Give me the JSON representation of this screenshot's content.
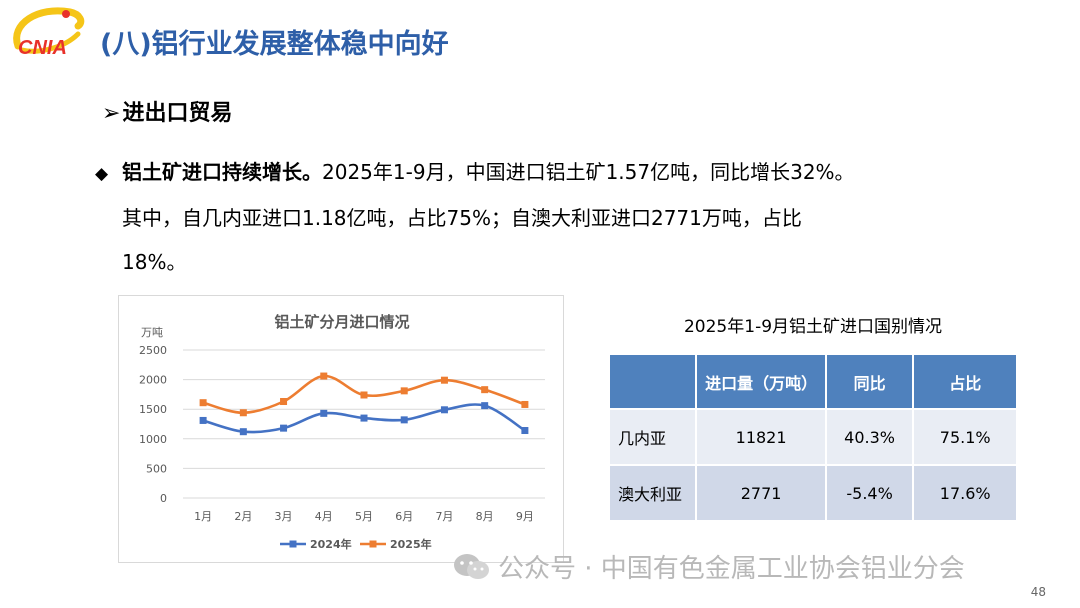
{
  "header": {
    "logo_text": "CNIA",
    "title": "(八)铝行业发展整体稳中向好"
  },
  "section": {
    "arrow": "➢",
    "heading": "进出口贸易"
  },
  "bullet": {
    "mark": "◆",
    "lead": "铝土矿进口持续增长。",
    "line1": "2025年1-9月，中国进口铝土矿1.57亿吨，同比增长32%。",
    "line2": "其中，自几内亚进口1.18亿吨，占比75%；自澳大利亚进口2771万吨，占比",
    "line3": "18%。"
  },
  "chart_data": {
    "type": "line",
    "title": "铝土矿分月进口情况",
    "ylabel": "万吨",
    "xlabel": "",
    "categories": [
      "1月",
      "2月",
      "3月",
      "4月",
      "5月",
      "6月",
      "7月",
      "8月",
      "9月"
    ],
    "ylim": [
      0,
      2500
    ],
    "yticks": [
      0,
      500,
      1000,
      1500,
      2000,
      2500
    ],
    "grid": true,
    "legend_position": "bottom",
    "series": [
      {
        "name": "2024年",
        "color": "#4472C4",
        "values": [
          1310,
          1120,
          1180,
          1430,
          1350,
          1320,
          1490,
          1560,
          1140
        ]
      },
      {
        "name": "2025年",
        "color": "#ED7D31",
        "values": [
          1610,
          1440,
          1630,
          2060,
          1740,
          1810,
          1990,
          1830,
          1580
        ]
      }
    ]
  },
  "table": {
    "title": "2025年1-9月铝土矿进口国别情况",
    "headers": [
      "",
      "进口量（万吨）",
      "同比",
      "占比"
    ],
    "rows": [
      [
        "几内亚",
        "11821",
        "40.3%",
        "75.1%"
      ],
      [
        "澳大利亚",
        "2771",
        "-5.4%",
        "17.6%"
      ]
    ],
    "header_color": "#4F81BD"
  },
  "footer": {
    "watermark": "公众号 · 中国有色金属工业协会铝业分会",
    "watermark_icon": "wechat-icon",
    "page_number": "48"
  }
}
